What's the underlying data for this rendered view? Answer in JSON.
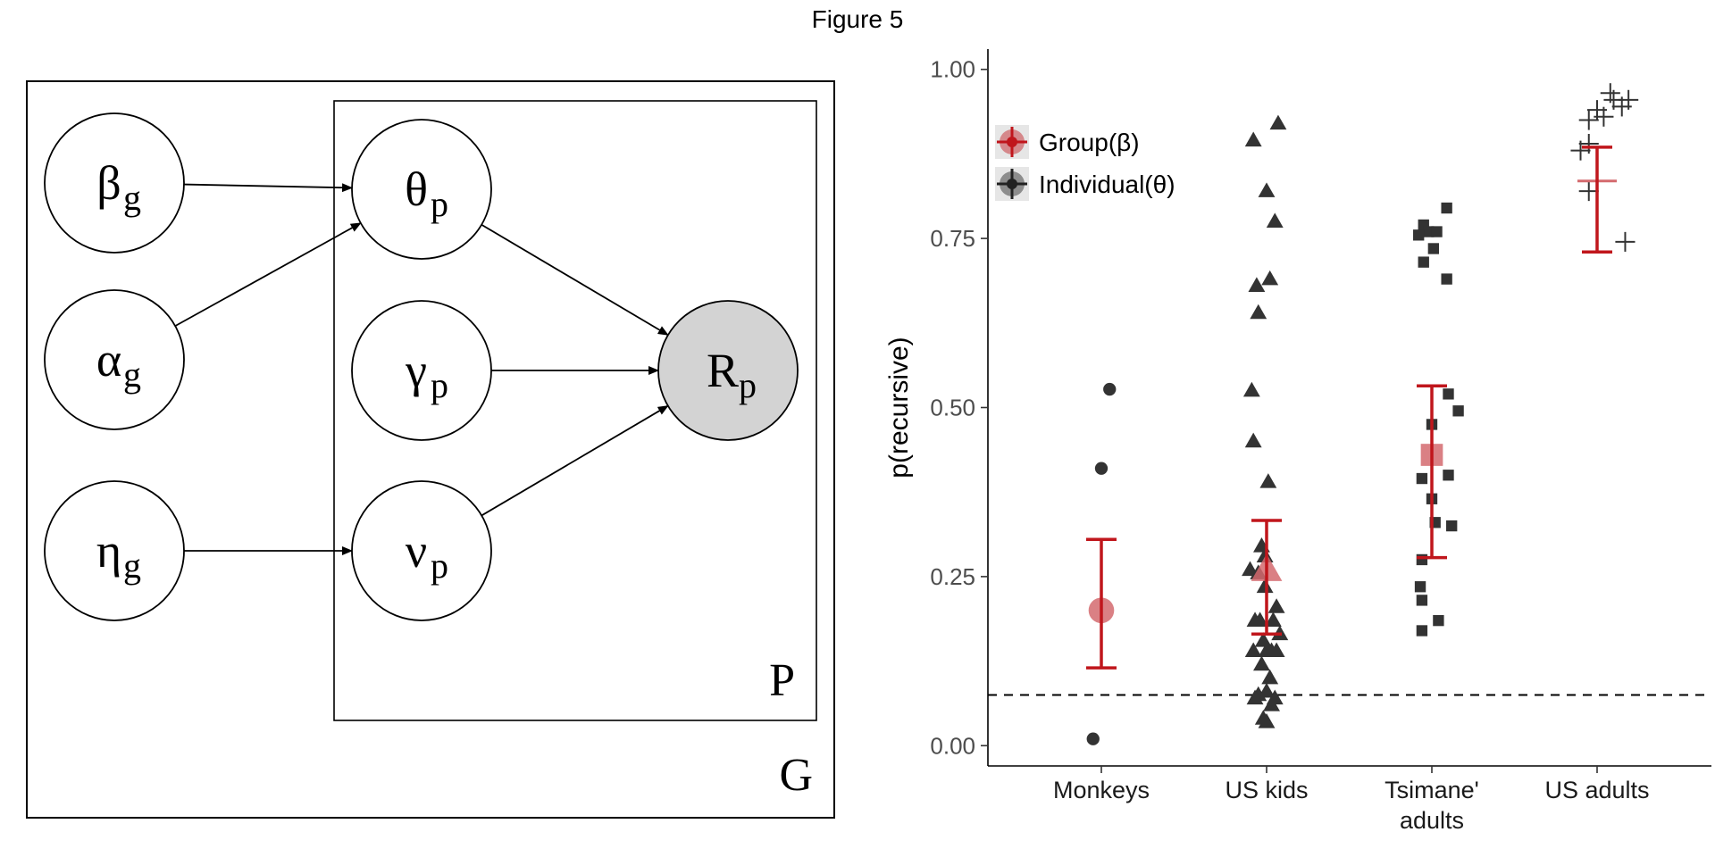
{
  "figure": {
    "title": "Figure 5"
  },
  "diagram": {
    "outer_plate_label": "G",
    "inner_plate_label": "P",
    "nodes": [
      {
        "id": "beta",
        "symbol": "β",
        "sub": "g",
        "observed": false
      },
      {
        "id": "alpha",
        "symbol": "α",
        "sub": "g",
        "observed": false
      },
      {
        "id": "eta",
        "symbol": "η",
        "sub": "g",
        "observed": false
      },
      {
        "id": "theta",
        "symbol": "θ",
        "sub": "p",
        "observed": false
      },
      {
        "id": "gamma",
        "symbol": "γ",
        "sub": "p",
        "observed": false
      },
      {
        "id": "nu",
        "symbol": "ν",
        "sub": "p",
        "observed": false
      },
      {
        "id": "R",
        "symbol": "R",
        "sub": "p",
        "observed": true
      }
    ],
    "edges": [
      [
        "beta",
        "theta"
      ],
      [
        "alpha",
        "theta"
      ],
      [
        "eta",
        "nu"
      ],
      [
        "theta",
        "R"
      ],
      [
        "gamma",
        "R"
      ],
      [
        "nu",
        "R"
      ]
    ]
  },
  "chart_data": {
    "type": "scatter",
    "ylabel": "p(recursive)",
    "xlabel": "",
    "categories": [
      "Monkeys",
      "US kids",
      "Tsimane' adults",
      "US adults"
    ],
    "category_lines": [
      [
        "Monkeys"
      ],
      [
        "US kids"
      ],
      [
        "Tsimane'",
        "adults"
      ],
      [
        "US adults"
      ]
    ],
    "ylim": [
      -0.03,
      1.03
    ],
    "yticks": [
      0.0,
      0.25,
      0.5,
      0.75,
      1.0
    ],
    "ytick_labels": [
      "0.00",
      "0.25",
      "0.50",
      "0.75",
      "1.00"
    ],
    "reference_line": 0.075,
    "legend": {
      "position": "top-left",
      "entries": [
        {
          "label": "Group(β)",
          "color": "#c0161c"
        },
        {
          "label": "Individual(θ)",
          "color": "#222222"
        }
      ]
    },
    "colors": {
      "group": "#c0161c",
      "group_point": "#d46a6e",
      "individual": "#333333"
    },
    "groups": [
      {
        "name": "Monkeys",
        "shape": "circle",
        "mean": 0.2,
        "lower": 0.115,
        "upper": 0.305,
        "individuals": [
          [
            -0.05,
            0.01
          ],
          [
            0.0,
            0.41
          ],
          [
            0.05,
            0.527
          ]
        ]
      },
      {
        "name": "US kids",
        "shape": "triangle",
        "mean": 0.26,
        "lower": 0.165,
        "upper": 0.333,
        "individuals": [
          [
            -0.08,
            0.895
          ],
          [
            0.07,
            0.92
          ],
          [
            0.0,
            0.82
          ],
          [
            0.05,
            0.775
          ],
          [
            -0.06,
            0.68
          ],
          [
            -0.05,
            0.64
          ],
          [
            0.02,
            0.69
          ],
          [
            -0.09,
            0.525
          ],
          [
            -0.08,
            0.45
          ],
          [
            0.01,
            0.39
          ],
          [
            -0.03,
            0.295
          ],
          [
            -0.01,
            0.28
          ],
          [
            -0.05,
            0.255
          ],
          [
            -0.01,
            0.235
          ],
          [
            -0.1,
            0.26
          ],
          [
            0.06,
            0.205
          ],
          [
            0.04,
            0.185
          ],
          [
            -0.07,
            0.185
          ],
          [
            -0.04,
            0.185
          ],
          [
            0.08,
            0.165
          ],
          [
            -0.08,
            0.14
          ],
          [
            -0.02,
            0.155
          ],
          [
            0.0,
            0.14
          ],
          [
            0.03,
            0.14
          ],
          [
            0.06,
            0.14
          ],
          [
            -0.03,
            0.12
          ],
          [
            0.02,
            0.1
          ],
          [
            -0.05,
            0.075
          ],
          [
            0.0,
            0.08
          ],
          [
            -0.07,
            0.07
          ],
          [
            0.05,
            0.07
          ],
          [
            0.03,
            0.06
          ],
          [
            -0.02,
            0.04
          ],
          [
            0.0,
            0.035
          ]
        ]
      },
      {
        "name": "Tsimane' adults",
        "shape": "square",
        "mean": 0.43,
        "lower": 0.278,
        "upper": 0.532,
        "individuals": [
          [
            -0.05,
            0.77
          ],
          [
            -0.02,
            0.76
          ],
          [
            0.03,
            0.76
          ],
          [
            0.09,
            0.795
          ],
          [
            -0.08,
            0.755
          ],
          [
            0.01,
            0.735
          ],
          [
            -0.05,
            0.715
          ],
          [
            0.09,
            0.69
          ],
          [
            0.1,
            0.52
          ],
          [
            0.16,
            0.495
          ],
          [
            0.0,
            0.475
          ],
          [
            -0.06,
            0.395
          ],
          [
            0.1,
            0.4
          ],
          [
            0.0,
            0.365
          ],
          [
            0.02,
            0.33
          ],
          [
            0.12,
            0.325
          ],
          [
            -0.06,
            0.275
          ],
          [
            -0.07,
            0.235
          ],
          [
            -0.06,
            0.215
          ],
          [
            0.04,
            0.185
          ],
          [
            -0.06,
            0.17
          ]
        ]
      },
      {
        "name": "US adults",
        "shape": "plus",
        "mean": 0.835,
        "lower": 0.73,
        "upper": 0.885,
        "individuals": [
          [
            0.08,
            0.965
          ],
          [
            0.1,
            0.955
          ],
          [
            0.19,
            0.955
          ],
          [
            0.15,
            0.945
          ],
          [
            0.0,
            0.94
          ],
          [
            0.04,
            0.93
          ],
          [
            -0.05,
            0.925
          ],
          [
            -0.1,
            0.88
          ],
          [
            -0.05,
            0.89
          ],
          [
            -0.05,
            0.82
          ],
          [
            0.17,
            0.745
          ]
        ]
      }
    ]
  }
}
